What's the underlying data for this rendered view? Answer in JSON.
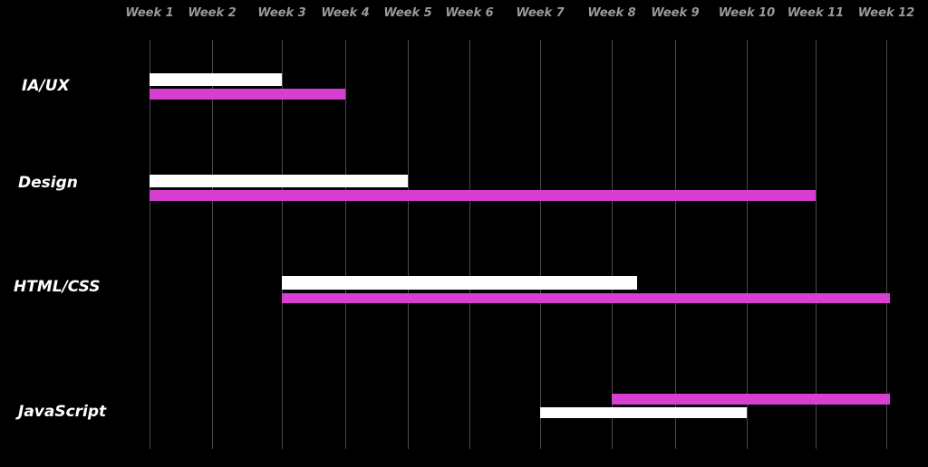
{
  "chart_data": {
    "type": "gantt",
    "title": "",
    "xlabel": "",
    "ylabel": "",
    "x_ticks": [
      "Week 1",
      "Week 2",
      "Week 3",
      "Week 4",
      "Week 5",
      "Week 6",
      "Week 7",
      "Week 8",
      "Week 9",
      "Week 10",
      "Week 11",
      "Week 12"
    ],
    "x_range": [
      1,
      12
    ],
    "grid": true,
    "legend": "none",
    "colors": {
      "background": "#000000",
      "white_bar": "#ffffff",
      "magenta_bar": "#d63fcf",
      "tick_text": "#9a9a9a",
      "gridline": "#4a4a4a"
    },
    "tasks": [
      {
        "label": "IA/UX",
        "bars": [
          {
            "color": "white",
            "start": 1,
            "end": 3
          },
          {
            "color": "magenta",
            "start": 1,
            "end": 4
          }
        ]
      },
      {
        "label": "Design",
        "bars": [
          {
            "color": "white",
            "start": 1,
            "end": 5
          },
          {
            "color": "magenta",
            "start": 1,
            "end": 11
          }
        ]
      },
      {
        "label": "HTML/CSS",
        "bars": [
          {
            "color": "white",
            "start": 3,
            "end": 8.4
          },
          {
            "color": "magenta",
            "start": 3,
            "end": 12.05
          }
        ]
      },
      {
        "label": "JavaScript",
        "bars": [
          {
            "color": "magenta",
            "start": 8,
            "end": 12.05
          },
          {
            "color": "white",
            "start": 7,
            "end": 10
          }
        ]
      }
    ]
  }
}
